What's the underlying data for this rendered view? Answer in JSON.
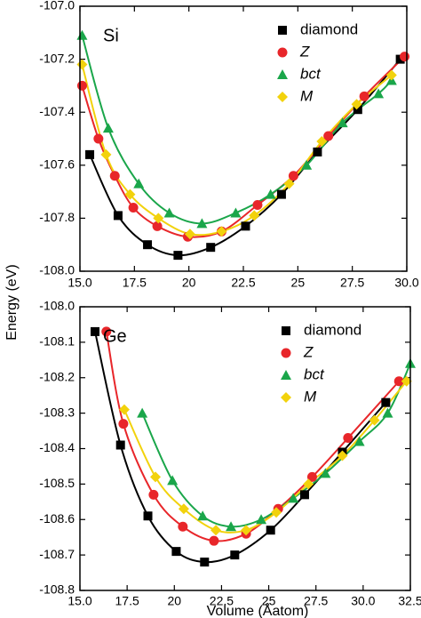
{
  "chart_data": [
    {
      "type": "line",
      "annotation": "Si",
      "ylabel": "Energy (eV)",
      "legend": "upper right",
      "xlim": [
        15,
        30
      ],
      "xticks": [
        {
          "value": 15,
          "label": "15.0"
        },
        17.5,
        20.0,
        22.5,
        25.0,
        27.5,
        {
          "value": 30,
          "label": "30.0"
        }
      ],
      "ylim": [
        -108,
        -107
      ],
      "yticks": [
        {
          "value": -108,
          "label": "-108.0"
        },
        -107.8,
        -107.6,
        -107.4,
        -107.2,
        {
          "value": -107,
          "label": "-107.0"
        }
      ],
      "series": [
        {
          "name": "diamond",
          "color": "#000000",
          "marker": "square",
          "x": [
            15.45,
            16.75,
            18.1,
            19.5,
            21.0,
            22.6,
            24.25,
            25.9,
            27.75,
            29.7
          ],
          "values": [
            -107.56,
            -107.79,
            -107.9,
            -107.94,
            -107.91,
            -107.83,
            -107.71,
            -107.55,
            -107.39,
            -107.2
          ]
        },
        {
          "name": "Z",
          "color": "#e8262a",
          "marker": "circle",
          "x": [
            15.1,
            15.85,
            16.6,
            17.45,
            18.55,
            19.95,
            21.5,
            23.15,
            24.8,
            26.4,
            28.05,
            29.9
          ],
          "values": [
            -107.3,
            -107.5,
            -107.64,
            -107.76,
            -107.83,
            -107.87,
            -107.85,
            -107.75,
            -107.64,
            -107.49,
            -107.34,
            -107.19
          ]
        },
        {
          "name": "bct",
          "color": "#1aa64a",
          "marker": "triangle",
          "x": [
            15.1,
            16.3,
            17.7,
            19.1,
            20.6,
            22.15,
            23.75,
            25.4,
            27.05,
            28.7,
            29.3
          ],
          "values": [
            -107.11,
            -107.46,
            -107.67,
            -107.78,
            -107.82,
            -107.78,
            -107.71,
            -107.6,
            -107.44,
            -107.33,
            -107.28
          ]
        },
        {
          "name": "M",
          "color": "#f2d20c",
          "marker": "diamond",
          "x": [
            15.1,
            16.2,
            17.3,
            18.6,
            20.05,
            21.5,
            23.0,
            24.6,
            26.1,
            27.7,
            29.3
          ],
          "values": [
            -107.22,
            -107.56,
            -107.71,
            -107.8,
            -107.86,
            -107.85,
            -107.79,
            -107.67,
            -107.51,
            -107.37,
            -107.26
          ]
        }
      ]
    },
    {
      "type": "line",
      "annotation": "Ge",
      "xlabel": "Volume (Åatom)",
      "legend": "upper right",
      "xlim": [
        15,
        32.5
      ],
      "xticks": [
        {
          "value": 15,
          "label": "15.0"
        },
        17.5,
        20.0,
        22.5,
        25.0,
        27.5,
        {
          "value": 30,
          "label": "30.0"
        },
        32.5
      ],
      "ylim": [
        -108.8,
        -108
      ],
      "yticks": [
        -108.8,
        -108.7,
        -108.6,
        -108.5,
        -108.4,
        -108.3,
        -108.2,
        -108.1,
        {
          "value": -108,
          "label": "-108.0"
        }
      ],
      "series": [
        {
          "name": "diamond",
          "color": "#000000",
          "marker": "square",
          "x": [
            15.8,
            17.15,
            18.6,
            20.1,
            21.6,
            23.2,
            25.1,
            26.9,
            28.9,
            31.2
          ],
          "values": [
            -108.07,
            -108.39,
            -108.59,
            -108.69,
            -108.72,
            -108.7,
            -108.63,
            -108.53,
            -108.41,
            -108.27
          ]
        },
        {
          "name": "Z",
          "color": "#e8262a",
          "marker": "circle",
          "x": [
            16.4,
            17.3,
            18.9,
            20.45,
            22.1,
            23.8,
            25.5,
            27.3,
            29.2,
            31.9
          ],
          "values": [
            -108.07,
            -108.33,
            -108.53,
            -108.62,
            -108.66,
            -108.64,
            -108.57,
            -108.48,
            -108.37,
            -108.21
          ]
        },
        {
          "name": "bct",
          "color": "#1aa64a",
          "marker": "triangle",
          "x": [
            18.3,
            19.9,
            21.5,
            23.0,
            24.6,
            26.3,
            28.0,
            29.8,
            31.3,
            32.5
          ],
          "values": [
            -108.3,
            -108.49,
            -108.59,
            -108.62,
            -108.6,
            -108.54,
            -108.47,
            -108.38,
            -108.3,
            -108.16
          ]
        },
        {
          "name": "M",
          "color": "#f2d20c",
          "marker": "diamond",
          "x": [
            17.35,
            19.0,
            20.5,
            22.2,
            23.8,
            25.4,
            27.1,
            28.9,
            30.6,
            32.3
          ],
          "values": [
            -108.29,
            -108.48,
            -108.57,
            -108.63,
            -108.63,
            -108.58,
            -108.5,
            -108.42,
            -108.32,
            -108.21
          ]
        }
      ]
    }
  ]
}
